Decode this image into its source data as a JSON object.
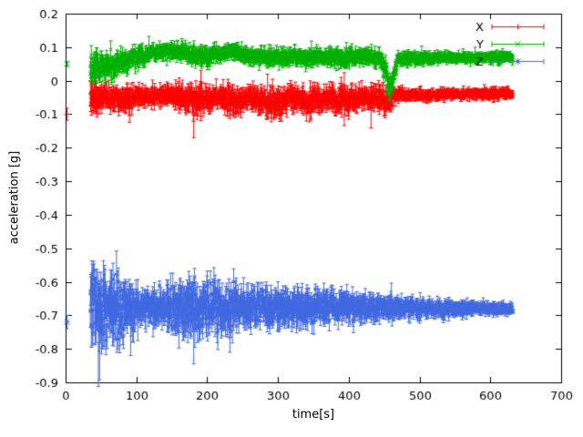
{
  "figure": {
    "background": "#ffffff"
  },
  "chart_data": {
    "type": "scatter",
    "style": "errorbars",
    "title": "",
    "xlabel": "time[s]",
    "ylabel": "acceleration [g]",
    "xlim": [
      0,
      700
    ],
    "ylim": [
      -0.9,
      0.2
    ],
    "grid": false,
    "xticks": [
      0,
      100,
      200,
      300,
      400,
      500,
      600,
      700
    ],
    "xtick_labels": [
      "0",
      "100",
      "200",
      "300",
      "400",
      "500",
      "600",
      "700"
    ],
    "yticks": [
      0.2,
      0.1,
      0,
      -0.1,
      -0.2,
      -0.3,
      -0.4,
      -0.5,
      -0.6,
      -0.7,
      -0.8,
      -0.9
    ],
    "ytick_labels": [
      "0.2",
      "0.1",
      "0",
      "-0.1",
      "-0.2",
      "-0.3",
      "-0.4",
      "-0.5",
      "-0.6",
      "-0.7",
      "-0.8",
      "-0.9"
    ],
    "legend": {
      "position": "top-right",
      "entries": [
        "X",
        "Y",
        "Z"
      ]
    },
    "sample_dt": 0.45,
    "envelope_format": [
      "time_s",
      "mean_g",
      "sigma_g",
      "errbar_g"
    ],
    "series": [
      {
        "name": "X",
        "color": "#ff0000",
        "marker": "plus",
        "seed": 11,
        "range": [
          35,
          632
        ],
        "initial_point": {
          "x": 2,
          "y": -0.1,
          "err": 0.018
        },
        "envelope": [
          [
            35,
            -0.05,
            0.028,
            0.032
          ],
          [
            55,
            -0.045,
            0.014,
            0.022
          ],
          [
            80,
            -0.055,
            0.016,
            0.025
          ],
          [
            110,
            -0.045,
            0.01,
            0.016
          ],
          [
            150,
            -0.048,
            0.012,
            0.02
          ],
          [
            185,
            -0.055,
            0.016,
            0.028
          ],
          [
            215,
            -0.05,
            0.012,
            0.02
          ],
          [
            235,
            -0.06,
            0.02,
            0.03
          ],
          [
            255,
            -0.05,
            0.012,
            0.02
          ],
          [
            300,
            -0.07,
            0.018,
            0.026
          ],
          [
            318,
            -0.052,
            0.014,
            0.02
          ],
          [
            338,
            -0.065,
            0.018,
            0.026
          ],
          [
            365,
            -0.05,
            0.012,
            0.02
          ],
          [
            395,
            -0.062,
            0.018,
            0.028
          ],
          [
            425,
            -0.05,
            0.012,
            0.02
          ],
          [
            452,
            -0.058,
            0.016,
            0.024
          ],
          [
            468,
            -0.042,
            0.007,
            0.012
          ],
          [
            550,
            -0.04,
            0.006,
            0.01
          ],
          [
            632,
            -0.038,
            0.006,
            0.01
          ]
        ],
        "outliers": [
          {
            "x": 181,
            "y": -0.06,
            "lo": -0.17,
            "hi": -0.03
          }
        ]
      },
      {
        "name": "Y",
        "color": "#00b000",
        "marker": "x",
        "seed": 22,
        "range": [
          35,
          632
        ],
        "initial_point": {
          "x": 2,
          "y": 0.05,
          "err": 0.008
        },
        "envelope": [
          [
            35,
            0.06,
            0.032,
            0.03
          ],
          [
            50,
            0.04,
            0.018,
            0.022
          ],
          [
            70,
            0.045,
            0.016,
            0.02
          ],
          [
            90,
            0.06,
            0.014,
            0.018
          ],
          [
            115,
            0.08,
            0.01,
            0.015
          ],
          [
            140,
            0.09,
            0.009,
            0.014
          ],
          [
            165,
            0.085,
            0.01,
            0.015
          ],
          [
            190,
            0.07,
            0.012,
            0.018
          ],
          [
            215,
            0.078,
            0.009,
            0.014
          ],
          [
            235,
            0.088,
            0.011,
            0.015
          ],
          [
            258,
            0.075,
            0.009,
            0.014
          ],
          [
            300,
            0.07,
            0.011,
            0.016
          ],
          [
            355,
            0.072,
            0.009,
            0.014
          ],
          [
            398,
            0.065,
            0.012,
            0.018
          ],
          [
            420,
            0.075,
            0.009,
            0.014
          ],
          [
            445,
            0.068,
            0.011,
            0.016
          ],
          [
            452,
            0.03,
            0.018,
            0.02
          ],
          [
            458,
            -0.025,
            0.014,
            0.018
          ],
          [
            464,
            0.02,
            0.014,
            0.018
          ],
          [
            470,
            0.065,
            0.008,
            0.012
          ],
          [
            550,
            0.07,
            0.006,
            0.01
          ],
          [
            632,
            0.07,
            0.006,
            0.01
          ]
        ],
        "outliers": []
      },
      {
        "name": "Z",
        "color": "#4169e1",
        "marker": "star",
        "seed": 33,
        "range": [
          35,
          632
        ],
        "initial_point": {
          "x": 2,
          "y": -0.72,
          "err": 0.02
        },
        "envelope": [
          [
            35,
            -0.68,
            0.05,
            0.062
          ],
          [
            60,
            -0.69,
            0.046,
            0.058
          ],
          [
            88,
            -0.685,
            0.04,
            0.052
          ],
          [
            105,
            -0.675,
            0.02,
            0.03
          ],
          [
            135,
            -0.675,
            0.022,
            0.032
          ],
          [
            162,
            -0.68,
            0.03,
            0.042
          ],
          [
            188,
            -0.68,
            0.034,
            0.048
          ],
          [
            215,
            -0.675,
            0.03,
            0.044
          ],
          [
            242,
            -0.68,
            0.028,
            0.04
          ],
          [
            272,
            -0.675,
            0.02,
            0.03
          ],
          [
            312,
            -0.68,
            0.024,
            0.036
          ],
          [
            348,
            -0.675,
            0.02,
            0.03
          ],
          [
            382,
            -0.68,
            0.02,
            0.03
          ],
          [
            412,
            -0.676,
            0.018,
            0.027
          ],
          [
            442,
            -0.68,
            0.015,
            0.024
          ],
          [
            470,
            -0.678,
            0.012,
            0.02
          ],
          [
            520,
            -0.68,
            0.01,
            0.016
          ],
          [
            575,
            -0.68,
            0.008,
            0.012
          ],
          [
            632,
            -0.68,
            0.006,
            0.01
          ]
        ],
        "outliers": [
          {
            "x": 65,
            "y": -0.62,
            "lo": -0.72,
            "hi": -0.565
          },
          {
            "x": 92,
            "y": -0.7,
            "lo": -0.82,
            "hi": -0.62
          },
          {
            "x": 181,
            "y": -0.7,
            "lo": -0.845,
            "hi": -0.62
          },
          {
            "x": 232,
            "y": -0.7,
            "lo": -0.81,
            "hi": -0.63
          }
        ]
      }
    ]
  }
}
